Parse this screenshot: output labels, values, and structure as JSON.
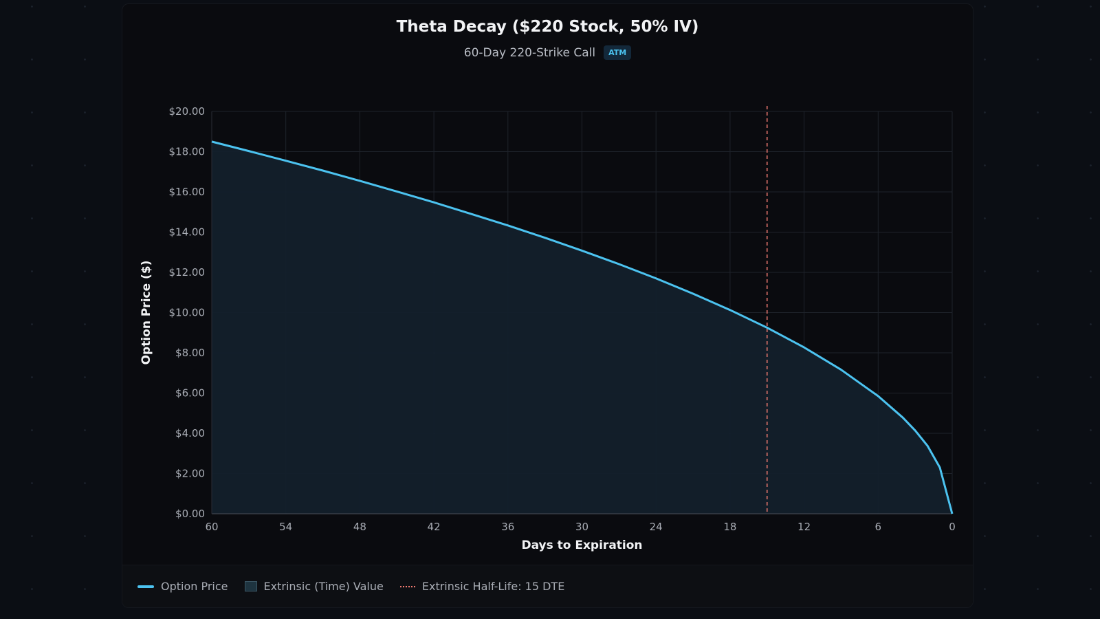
{
  "chart_data": {
    "type": "area",
    "title": "Theta Decay ($220 Stock, 50% IV)",
    "subtitle": "60-Day 220-Strike Call",
    "badge": "ATM",
    "xlabel": "Days to Expiration",
    "ylabel": "Option Price ($)",
    "xlim": [
      60,
      0
    ],
    "ylim": [
      0,
      20
    ],
    "x_reversed": true,
    "grid": true,
    "x_ticks": [
      "60",
      "54",
      "48",
      "42",
      "36",
      "30",
      "24",
      "18",
      "12",
      "6",
      "0"
    ],
    "y_ticks": [
      "$0.00",
      "$2.00",
      "$4.00",
      "$6.00",
      "$8.00",
      "$10.00",
      "$12.00",
      "$14.00",
      "$16.00",
      "$18.00",
      "$20.00"
    ],
    "series": [
      {
        "name": "Option Price",
        "color": "#4cc3f0",
        "x": [
          60,
          57,
          54,
          51,
          48,
          45,
          42,
          39,
          36,
          33,
          30,
          27,
          24,
          21,
          18,
          15,
          12,
          9,
          6,
          4,
          3,
          2,
          1,
          0
        ],
        "y": [
          18.5,
          18.03,
          17.55,
          17.06,
          16.55,
          16.02,
          15.48,
          14.91,
          14.33,
          13.72,
          13.08,
          12.41,
          11.7,
          10.94,
          10.13,
          9.25,
          8.27,
          7.16,
          5.85,
          4.78,
          4.14,
          3.38,
          2.3,
          0
        ]
      }
    ],
    "area": {
      "name": "Extrinsic (Time) Value",
      "color": "#13202b"
    },
    "vline": {
      "name": "Extrinsic Half-Life: 15 DTE",
      "x": 15,
      "color": "#f07a70"
    },
    "legend_position": "bottom-left"
  }
}
